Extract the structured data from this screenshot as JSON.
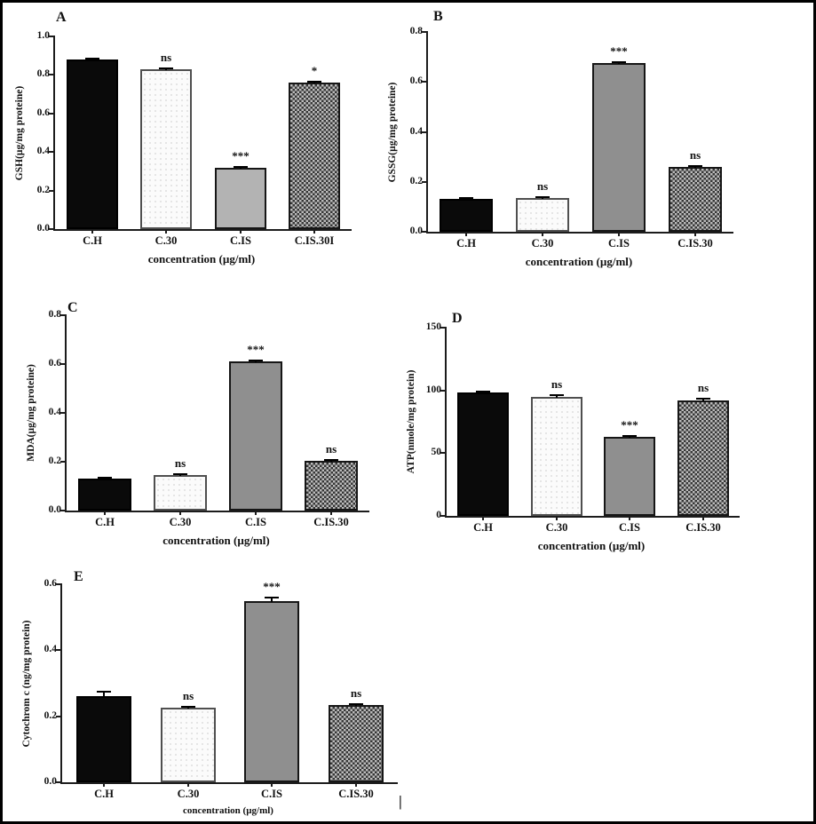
{
  "colors": {
    "bar_black": "#0a0a0a",
    "bar_white_fill": "#fbfbfb",
    "bar_white_dot": "#dedede",
    "bar_gray": "#8f8f8f",
    "bar_gray_light": "#b3b3b3",
    "checker_dark": "#363636",
    "checker_light": "#bcbcbc",
    "axis": "#1c1c1c",
    "frame_border": "#000000"
  },
  "stray_mark": "|",
  "chart_data": [
    {
      "type": "bar",
      "panel_label": "A",
      "ylabel": "GSH(µg/mg proteine)",
      "xlabel": "concentration (µg/ml)",
      "ylim": [
        0,
        1.0
      ],
      "yticks": [
        "0.0",
        "0.2",
        "0.4",
        "0.6",
        "0.8",
        "1.0"
      ],
      "categories": [
        "C.H",
        "C.30",
        "C.IS",
        "C.IS.30I"
      ],
      "values": [
        0.88,
        0.83,
        0.32,
        0.76
      ],
      "errors": [
        0.01,
        0.01,
        0.006,
        0.01
      ],
      "significance": [
        "",
        "ns",
        "***",
        "*"
      ],
      "patterns": [
        "solid-black",
        "dotted-white",
        "solid-gray-light",
        "checker"
      ],
      "grid": false,
      "legend": null
    },
    {
      "type": "bar",
      "panel_label": "B",
      "ylabel": "GSSG(µg/mg proteine)",
      "xlabel": "concentration (µg/ml)",
      "ylim": [
        0,
        0.8
      ],
      "yticks": [
        "0.0",
        "0.2",
        "0.4",
        "0.6",
        "0.8"
      ],
      "categories": [
        "C.H",
        "C.30",
        "C.IS",
        "C.IS.30"
      ],
      "values": [
        0.13,
        0.135,
        0.675,
        0.26
      ],
      "errors": [
        0.004,
        0.006,
        0.008,
        0.005
      ],
      "significance": [
        "",
        "ns",
        "***",
        "ns"
      ],
      "patterns": [
        "solid-black",
        "dotted-white",
        "solid-gray",
        "checker"
      ],
      "grid": false,
      "legend": null
    },
    {
      "type": "bar",
      "panel_label": "C",
      "ylabel": "MDA(µg/mg proteine)",
      "xlabel": "concentration (µg/ml)",
      "ylim": [
        0,
        0.8
      ],
      "yticks": [
        "0.0",
        "0.2",
        "0.4",
        "0.6",
        "0.8"
      ],
      "categories": [
        "C.H",
        "C.30",
        "C.IS",
        "C.IS.30"
      ],
      "values": [
        0.13,
        0.145,
        0.61,
        0.205
      ],
      "errors": [
        0.004,
        0.004,
        0.008,
        0.006
      ],
      "significance": [
        "",
        "ns",
        "***",
        "ns"
      ],
      "patterns": [
        "solid-black",
        "dotted-white",
        "solid-gray",
        "checker"
      ],
      "grid": false,
      "legend": null
    },
    {
      "type": "bar",
      "panel_label": "D",
      "ylabel": "ATP(nmole/mg protein)",
      "xlabel": "concentration (µg/ml)",
      "ylim": [
        0,
        150
      ],
      "yticks": [
        "0",
        "50",
        "100",
        "150"
      ],
      "categories": [
        "C.H",
        "C.30",
        "C.IS",
        "C.IS.30"
      ],
      "values": [
        98,
        95,
        63,
        92
      ],
      "errors": [
        1.5,
        3,
        1.5,
        2.5
      ],
      "significance": [
        "",
        "ns",
        "***",
        "ns"
      ],
      "patterns": [
        "solid-black",
        "dotted-white",
        "solid-gray",
        "checker"
      ],
      "grid": false,
      "legend": null
    },
    {
      "type": "bar",
      "panel_label": "E",
      "ylabel": "Cytochrom c (ng/mg protein)",
      "xlabel": "concentration (µg/ml)",
      "ylim": [
        0,
        0.6
      ],
      "yticks": [
        "0.0",
        "0.2",
        "0.4",
        "0.6"
      ],
      "categories": [
        "C.H",
        "C.30",
        "C.IS",
        "C.IS.30"
      ],
      "values": [
        0.26,
        0.225,
        0.55,
        0.235
      ],
      "errors": [
        0.02,
        0.006,
        0.015,
        0.006
      ],
      "significance": [
        "",
        "ns",
        "***",
        "ns"
      ],
      "patterns": [
        "solid-black",
        "dotted-white",
        "solid-gray",
        "checker"
      ],
      "grid": false,
      "legend": null
    }
  ]
}
